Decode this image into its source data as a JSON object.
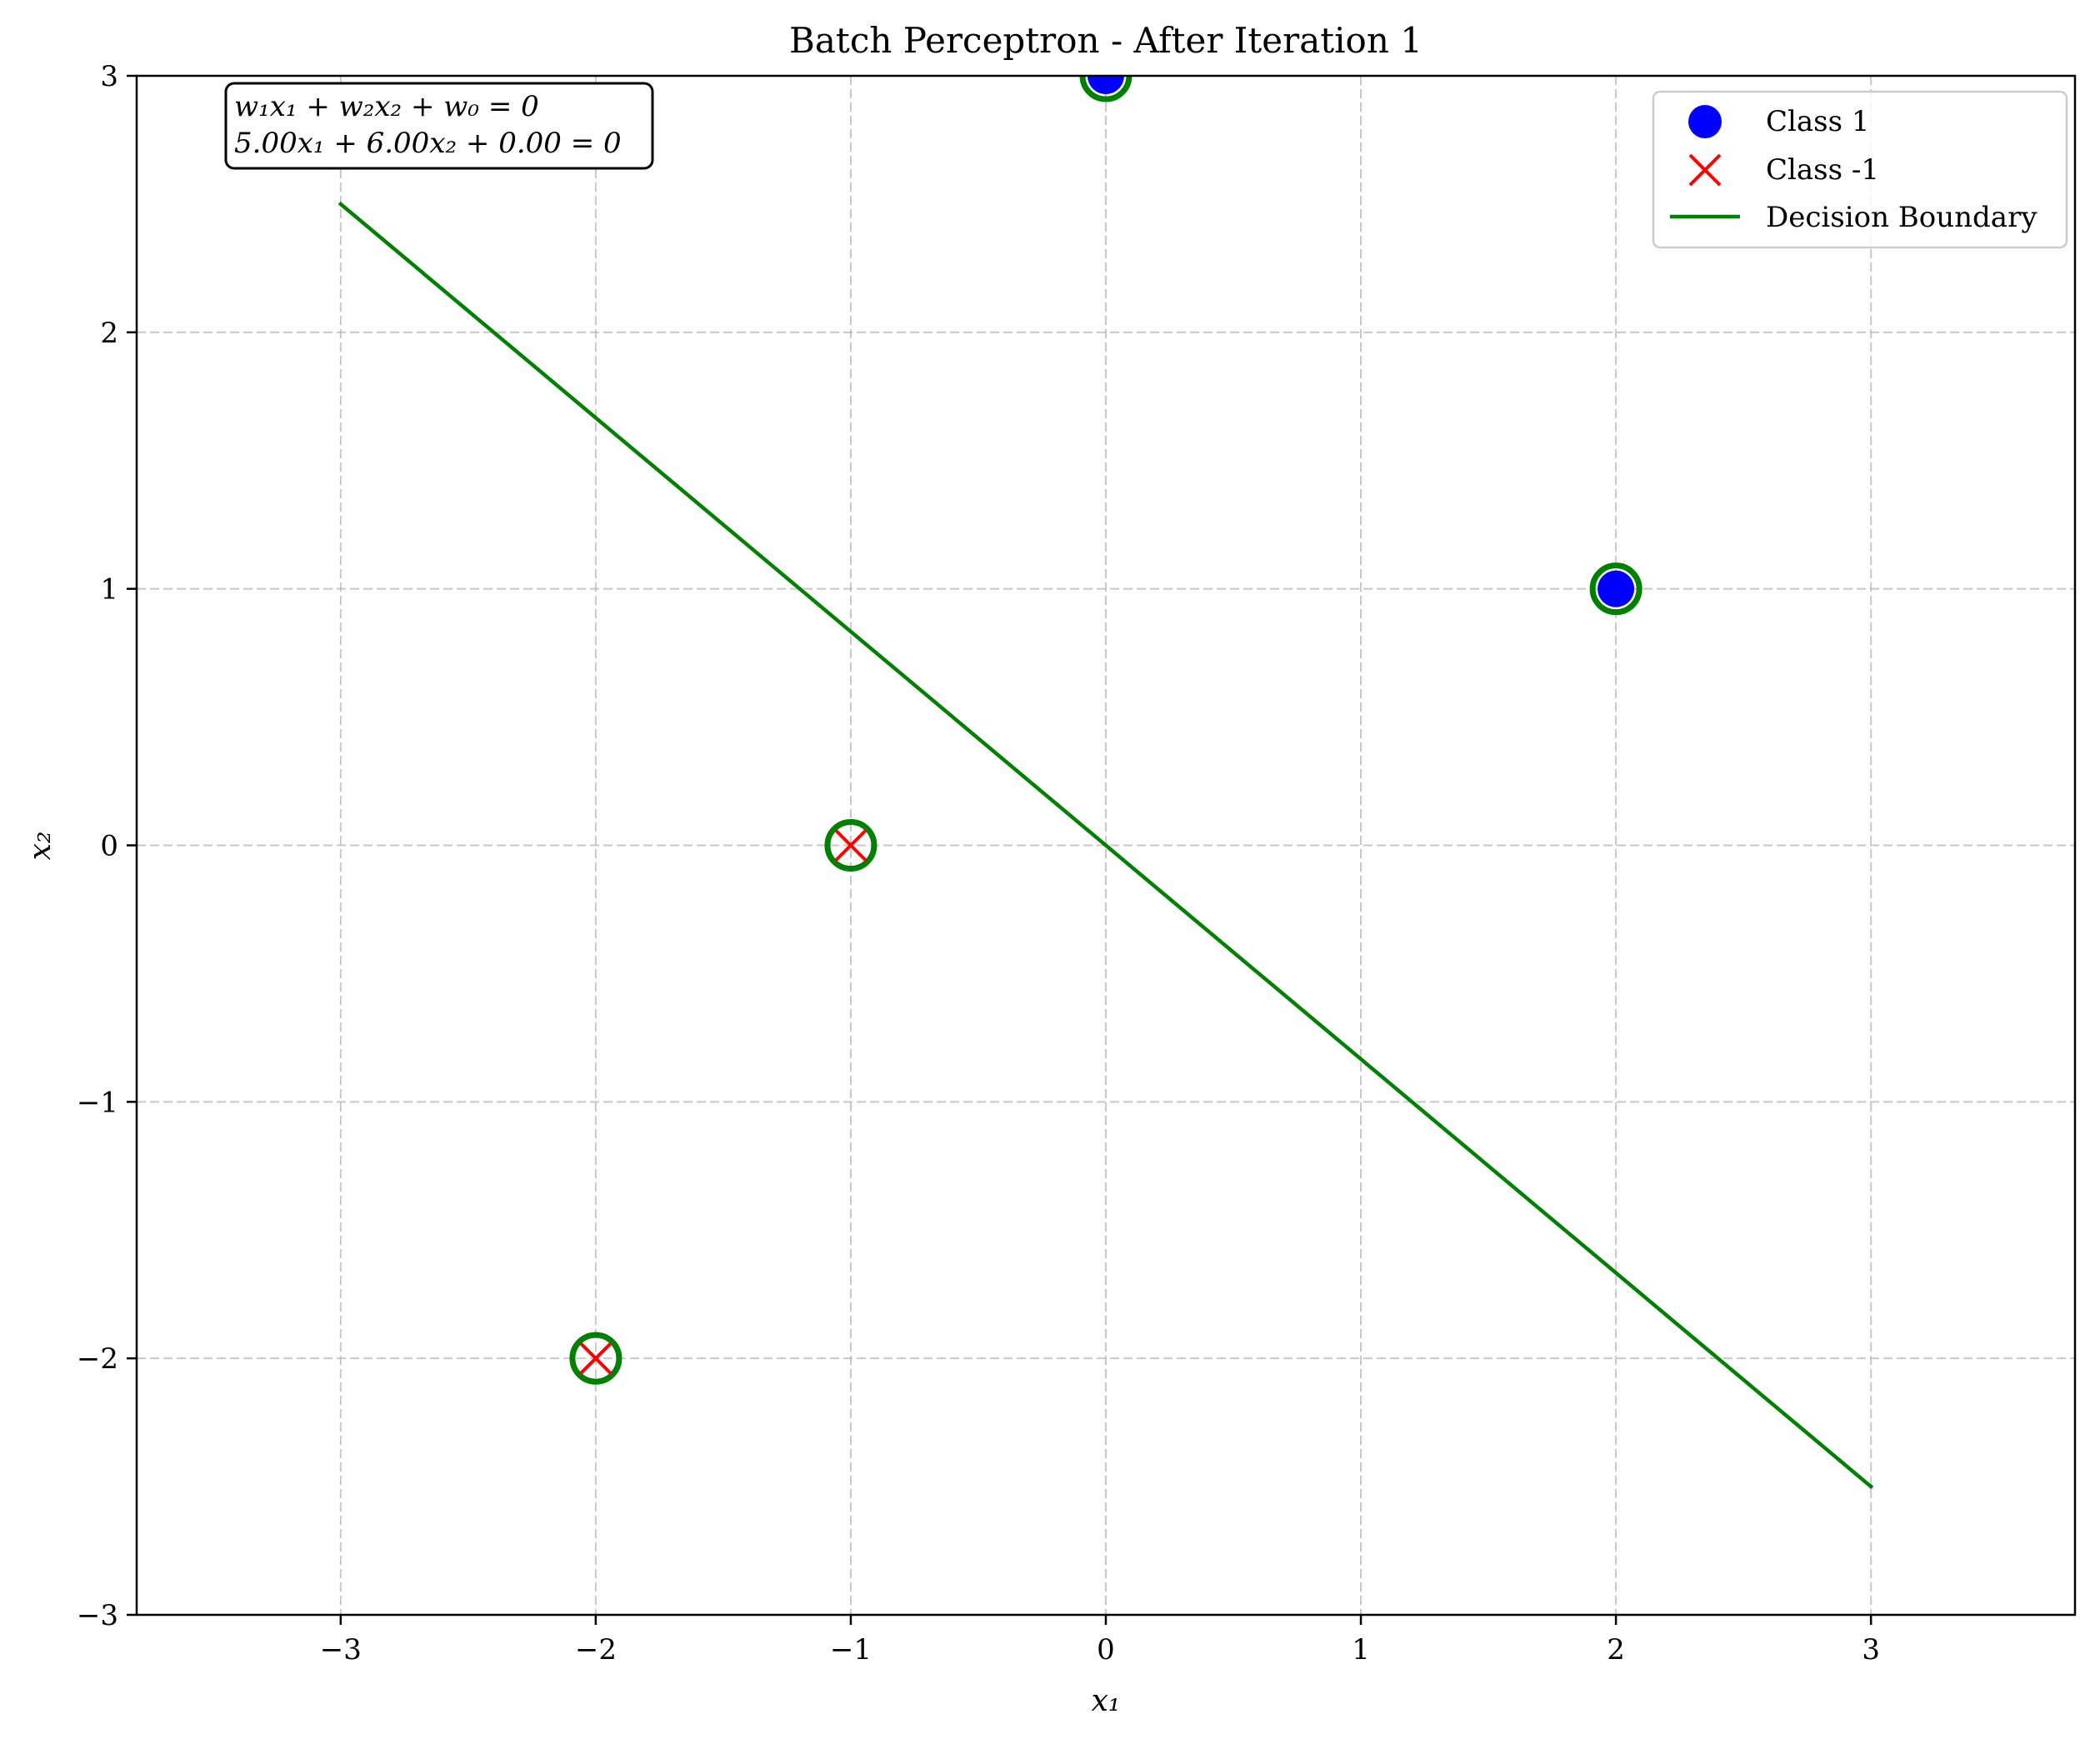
{
  "chart_data": {
    "type": "scatter",
    "title": "Batch Perceptron - After Iteration 1",
    "xlabel": "x₁",
    "ylabel": "x₂",
    "xlim": [
      -3.8,
      3.8
    ],
    "ylim": [
      -3,
      3
    ],
    "xticks": [
      -3,
      -2,
      -1,
      0,
      1,
      2,
      3
    ],
    "yticks": [
      -3,
      -2,
      -1,
      0,
      1,
      2,
      3
    ],
    "xtick_labels": [
      "−3",
      "−2",
      "−1",
      "0",
      "1",
      "2",
      "3"
    ],
    "ytick_labels": [
      "−3",
      "−2",
      "−1",
      "0",
      "1",
      "2",
      "3"
    ],
    "grid": true,
    "legend_position": "top-right",
    "series": [
      {
        "name": "Class 1",
        "marker": "circle",
        "color": "#0000ff",
        "points": [
          {
            "x": 0,
            "y": 3
          },
          {
            "x": 2,
            "y": 1
          }
        ]
      },
      {
        "name": "Class -1",
        "marker": "x",
        "color": "#ff0000",
        "points": [
          {
            "x": -1,
            "y": 0
          },
          {
            "x": -2,
            "y": -2
          }
        ]
      }
    ],
    "highlighted_points": {
      "color": "#008000",
      "points": [
        {
          "x": 0,
          "y": 3
        },
        {
          "x": 2,
          "y": 1
        },
        {
          "x": -1,
          "y": 0
        },
        {
          "x": -2,
          "y": -2
        }
      ]
    },
    "boundary": {
      "name": "Decision Boundary",
      "color": "#008000",
      "weights": {
        "w1": 5.0,
        "w2": 6.0,
        "w0": 0.0
      },
      "x_range": [
        -3,
        3
      ]
    },
    "annotation": {
      "line1": "w₁x₁ + w₂x₂ + w₀ = 0",
      "line2": "5.00x₁ + 6.00x₂ + 0.00 = 0"
    }
  }
}
